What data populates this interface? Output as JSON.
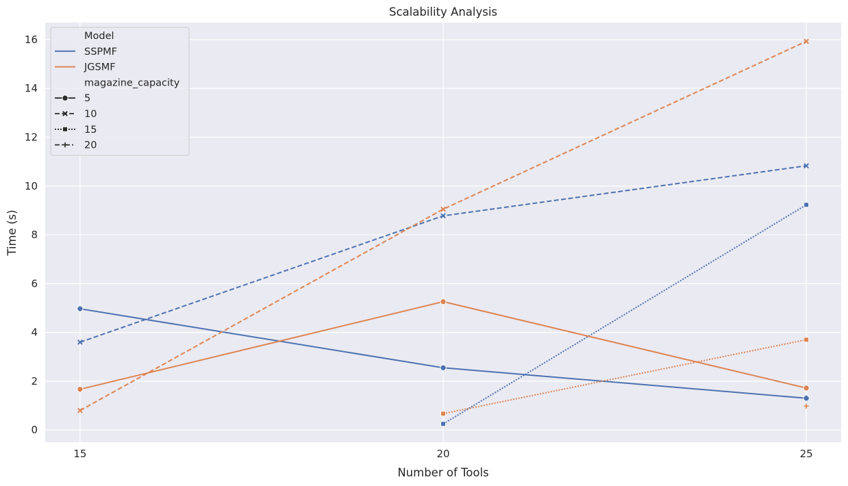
{
  "chart_data": {
    "type": "line",
    "title": "Scalability Analysis",
    "xlabel": "Number of Tools",
    "ylabel": "Time (s)",
    "x_ticks": [
      15,
      20,
      25
    ],
    "y_ticks": [
      0,
      2,
      4,
      6,
      8,
      10,
      12,
      14,
      16
    ],
    "xlim": [
      14.52,
      25.48
    ],
    "ylim": [
      -0.5,
      16.7
    ],
    "grid": true,
    "legend": {
      "position": "top-left",
      "hue_title": "Model",
      "style_title": "magazine_capacity",
      "hue_entries": [
        {
          "label": "SSPMF",
          "color": "#4c72b0"
        },
        {
          "label": "JGSMF",
          "color": "#dd8452"
        }
      ],
      "style_entries": [
        {
          "label": "5",
          "dash": "solid",
          "marker": "circle"
        },
        {
          "label": "10",
          "dash": "dashed",
          "marker": "x"
        },
        {
          "label": "15",
          "dash": "dotted",
          "marker": "square"
        },
        {
          "label": "20",
          "dash": "dashdot",
          "marker": "plus"
        }
      ]
    },
    "series": [
      {
        "model": "SSPMF",
        "magazine_capacity": "5",
        "color": "#4c72b0",
        "dash": "solid",
        "marker": "circle",
        "x": [
          15,
          20,
          25
        ],
        "y": [
          4.97,
          2.55,
          1.3
        ]
      },
      {
        "model": "SSPMF",
        "magazine_capacity": "10",
        "color": "#4c72b0",
        "dash": "dashed",
        "marker": "x",
        "x": [
          15,
          20,
          25
        ],
        "y": [
          3.6,
          8.78,
          10.83
        ]
      },
      {
        "model": "SSPMF",
        "magazine_capacity": "15",
        "color": "#4c72b0",
        "dash": "dotted",
        "marker": "square",
        "x": [
          20,
          25
        ],
        "y": [
          0.25,
          9.23
        ]
      },
      {
        "model": "SSPMF",
        "magazine_capacity": "20",
        "color": "#4c72b0",
        "dash": "dashdot",
        "marker": "plus",
        "x": [
          25
        ],
        "y": [
          1.32
        ]
      },
      {
        "model": "JGSMF",
        "magazine_capacity": "5",
        "color": "#dd8452",
        "dash": "solid",
        "marker": "circle",
        "x": [
          15,
          20,
          25
        ],
        "y": [
          1.67,
          5.26,
          1.72
        ]
      },
      {
        "model": "JGSMF",
        "magazine_capacity": "10",
        "color": "#dd8452",
        "dash": "dashed",
        "marker": "x",
        "x": [
          15,
          20,
          25
        ],
        "y": [
          0.8,
          9.05,
          15.93
        ]
      },
      {
        "model": "JGSMF",
        "magazine_capacity": "15",
        "color": "#dd8452",
        "dash": "dotted",
        "marker": "square",
        "x": [
          20,
          25
        ],
        "y": [
          0.67,
          3.7
        ]
      },
      {
        "model": "JGSMF",
        "magazine_capacity": "20",
        "color": "#dd8452",
        "dash": "dashdot",
        "marker": "plus",
        "x": [
          25
        ],
        "y": [
          0.98
        ]
      }
    ]
  }
}
